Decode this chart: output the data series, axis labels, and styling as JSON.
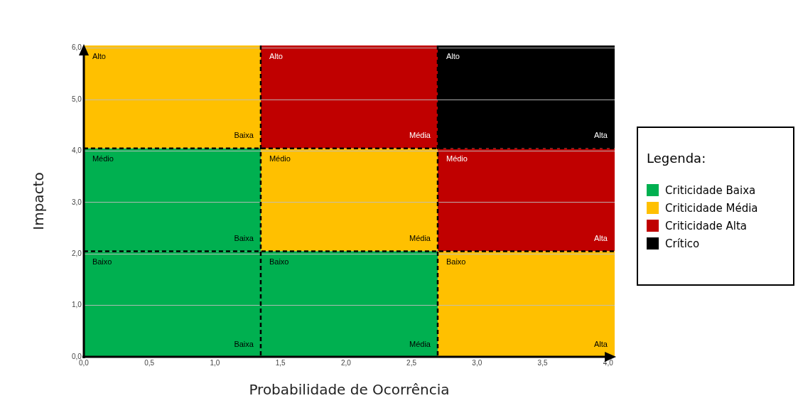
{
  "chart_data": {
    "type": "heatmap",
    "xlabel": "Probabilidade de Ocorrência",
    "ylabel": "Impacto",
    "legend_title": "Legenda:",
    "legend": "right",
    "xlim": [
      0,
      4.05
    ],
    "ylim": [
      0,
      6.05
    ],
    "xticks": [
      {
        "value": 0,
        "label": "0,0"
      },
      {
        "value": 0.5,
        "label": "0,5"
      },
      {
        "value": 1,
        "label": "1,0"
      },
      {
        "value": 1.5,
        "label": "1,5"
      },
      {
        "value": 2,
        "label": "2,0"
      },
      {
        "value": 2.5,
        "label": "2,5"
      },
      {
        "value": 3,
        "label": "3,0"
      },
      {
        "value": 3.5,
        "label": "3,5"
      },
      {
        "value": 4,
        "label": "4,0"
      }
    ],
    "yticks": [
      {
        "value": 0,
        "label": "0,0"
      },
      {
        "value": 1,
        "label": "1,0"
      },
      {
        "value": 2,
        "label": "2,0"
      },
      {
        "value": 3,
        "label": "3,0"
      },
      {
        "value": 4,
        "label": "4,0"
      },
      {
        "value": 5,
        "label": "5,0"
      },
      {
        "value": 6,
        "label": "6,0"
      }
    ],
    "grid": "y",
    "ref_lines": [
      {
        "axis": "x",
        "value": 1.35,
        "color": "#000000",
        "line_style": "dashed"
      },
      {
        "axis": "x",
        "value": 2.7,
        "color": "#000000",
        "line_style": "dashed"
      },
      {
        "axis": "y",
        "value": 4.05,
        "color": "#000000",
        "line_style": "dashed"
      },
      {
        "axis": "y",
        "value": 2.05,
        "color": "#000000",
        "line_style": "dashed"
      }
    ],
    "series": [
      {
        "name": "Criticidade Baixa",
        "color": "#00b050"
      },
      {
        "name": "Criticidade Média",
        "color": "#ffc000"
      },
      {
        "name": "Criticidade Alta",
        "color": "#c00000"
      },
      {
        "name": "Crítico",
        "color": "#000000"
      }
    ],
    "colors": [
      [
        "#ffc000",
        "#c00000",
        "#000000"
      ],
      [
        "#00b050",
        "#ffc000",
        "#c00000"
      ],
      [
        "#00b050",
        "#00b050",
        "#ffc000"
      ]
    ],
    "cell_labels": [
      [
        [
          "Alto",
          "Baixa"
        ],
        [
          "Alto",
          "Média"
        ],
        [
          "Alto",
          "Alta"
        ]
      ],
      [
        [
          "Médio",
          "Baixa"
        ],
        [
          "Médio",
          "Média"
        ],
        [
          "Médio",
          "Alta"
        ]
      ],
      [
        [
          "Baixo",
          "Baixa"
        ],
        [
          "Baixo",
          "Média"
        ],
        [
          "Baixo",
          "Alta"
        ]
      ]
    ]
  }
}
